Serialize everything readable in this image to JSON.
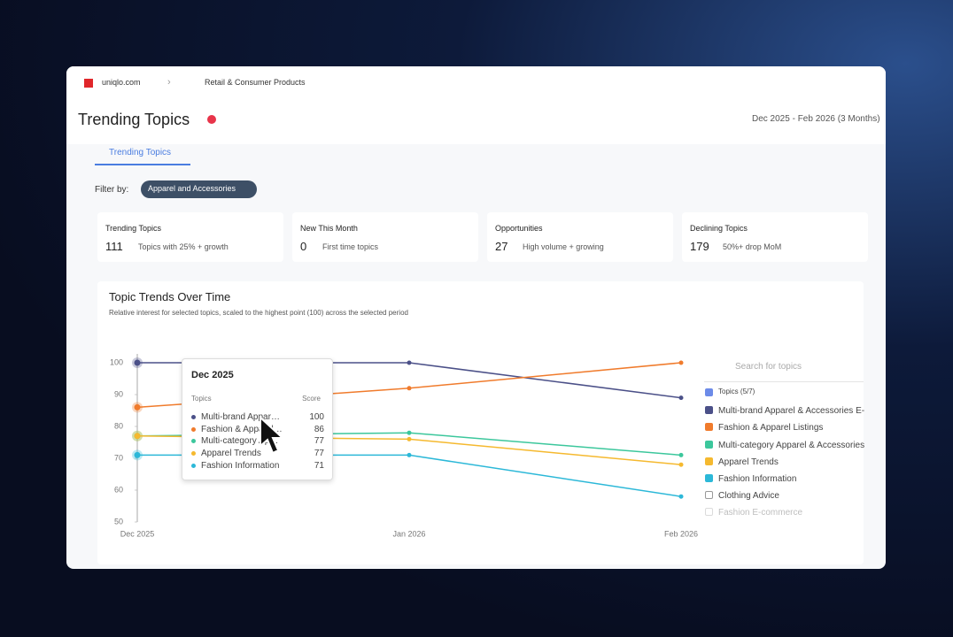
{
  "header": {
    "site": "uniqlo.com",
    "industry": "Retail & Consumer Products",
    "title": "Trending Topics",
    "date_range": "Dec 2025 - Feb 2026 (3 Months)"
  },
  "tabs": [
    "Trending Topics"
  ],
  "filter": {
    "label": "Filter by:",
    "chip": "Apparel and Accessories"
  },
  "stats": [
    {
      "label": "Trending Topics",
      "value": 111,
      "desc": "Topics with 25% + growth"
    },
    {
      "label": "New This Month",
      "value": 0,
      "desc": "First time topics"
    },
    {
      "label": "Opportunities",
      "value": 27,
      "desc": "High volume + growing"
    },
    {
      "label": "Declining Topics",
      "value": 179,
      "desc": "50%+ drop MoM"
    }
  ],
  "chart_data": {
    "type": "line",
    "title": "Topic Trends Over Time",
    "subtitle": "Relative interest for selected topics, scaled to the highest point (100) across the selected period",
    "categories": [
      "Dec 2025",
      "Jan 2026",
      "Feb 2026"
    ],
    "series": [
      {
        "name": "Multi-brand Apparel & Accessories E-commerce",
        "color": "#4b5088",
        "values": [
          100,
          100,
          89
        ]
      },
      {
        "name": "Fashion & Apparel Listings",
        "color": "#f07b2c",
        "values": [
          86,
          92,
          100
        ]
      },
      {
        "name": "Multi-category Apparel & Accessories",
        "color": "#3cc79c",
        "values": [
          77,
          78,
          71
        ]
      },
      {
        "name": "Apparel Trends",
        "color": "#f5b92f",
        "values": [
          77,
          76,
          68
        ]
      },
      {
        "name": "Fashion Information",
        "color": "#2cb8d8",
        "values": [
          71,
          71,
          58
        ]
      }
    ],
    "ylim": [
      50,
      100
    ],
    "yticks": [
      50,
      60,
      70,
      80,
      90,
      100
    ],
    "grid": false
  },
  "legend": {
    "search_placeholder": "Search for topics",
    "header": "Topics (5/7)",
    "unselected": [
      "Clothing Advice",
      "Fashion E-commerce"
    ]
  },
  "tooltip": {
    "title": "Dec 2025",
    "col_topics": "Topics",
    "col_score": "Score"
  }
}
